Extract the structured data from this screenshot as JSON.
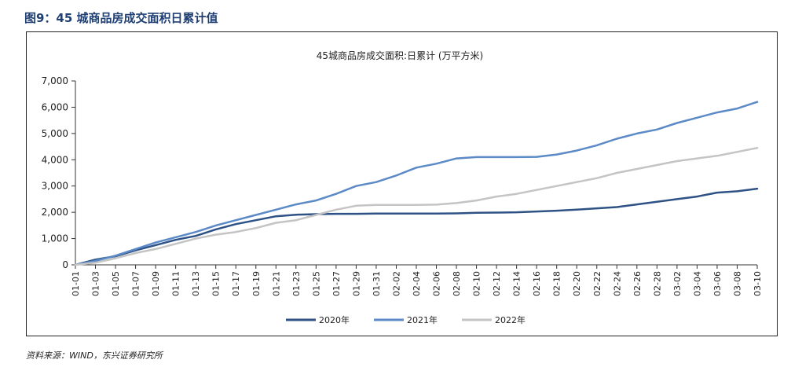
{
  "heading": "图9：45 城商品房成交面积日累计值",
  "source": "资料来源：WIND，东兴证券研究所",
  "chart_data": {
    "type": "line",
    "title": "45城商品房成交面积:日累计 (万平方米)",
    "xlabel": "",
    "ylabel": "",
    "ylim": [
      0,
      7000
    ],
    "yticks": [
      "0",
      "1,000",
      "2,000",
      "3,000",
      "4,000",
      "5,000",
      "6,000",
      "7,000"
    ],
    "grid": false,
    "legend_position": "bottom",
    "categories": [
      "01-01",
      "01-03",
      "01-05",
      "01-07",
      "01-09",
      "01-11",
      "01-13",
      "01-15",
      "01-17",
      "01-19",
      "01-21",
      "01-23",
      "01-25",
      "01-27",
      "01-29",
      "01-31",
      "02-02",
      "02-04",
      "02-06",
      "02-08",
      "02-10",
      "02-12",
      "02-14",
      "02-16",
      "02-18",
      "02-20",
      "02-22",
      "02-24",
      "02-26",
      "02-28",
      "03-02",
      "03-04",
      "03-06",
      "03-08",
      "03-10"
    ],
    "series": [
      {
        "name": "2020年",
        "color": "#2e5286",
        "values": [
          0,
          200,
          330,
          550,
          750,
          950,
          1100,
          1350,
          1550,
          1700,
          1850,
          1910,
          1930,
          1940,
          1940,
          1950,
          1950,
          1950,
          1950,
          1960,
          1980,
          1990,
          2000,
          2030,
          2060,
          2100,
          2150,
          2200,
          2300,
          2400,
          2500,
          2600,
          2750,
          2800,
          2900
        ]
      },
      {
        "name": "2021年",
        "color": "#5b8ac6",
        "values": [
          0,
          150,
          350,
          600,
          850,
          1050,
          1250,
          1500,
          1700,
          1900,
          2100,
          2300,
          2450,
          2700,
          3000,
          3150,
          3400,
          3700,
          3850,
          4050,
          4100,
          4100,
          4100,
          4110,
          4200,
          4350,
          4550,
          4800,
          5000,
          5150,
          5400,
          5600,
          5800,
          5950,
          6200
        ]
      },
      {
        "name": "2022年",
        "color": "#c4c4c4",
        "values": [
          0,
          80,
          250,
          450,
          600,
          800,
          1000,
          1150,
          1250,
          1400,
          1600,
          1700,
          1900,
          2100,
          2250,
          2280,
          2280,
          2280,
          2290,
          2350,
          2450,
          2600,
          2700,
          2850,
          3000,
          3150,
          3300,
          3500,
          3650,
          3800,
          3950,
          4050,
          4150,
          4300,
          4450
        ]
      }
    ]
  }
}
